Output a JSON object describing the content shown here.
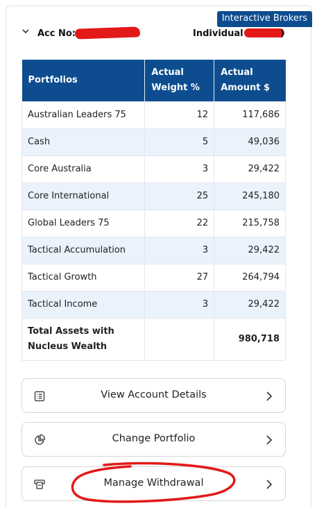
{
  "account": {
    "broker": "Interactive Brokers",
    "acc_label": "Acc No:",
    "type_label": "Individual (",
    "type_close": ")"
  },
  "table": {
    "headers": [
      "Portfolios",
      "Actual Weight %",
      "Actual Amount $"
    ],
    "rows": [
      {
        "portfolio": "Australian Leaders 75",
        "weight": "12",
        "amount": "117,686"
      },
      {
        "portfolio": "Cash",
        "weight": "5",
        "amount": "49,036"
      },
      {
        "portfolio": "Core Australia",
        "weight": "3",
        "amount": "29,422"
      },
      {
        "portfolio": "Core International",
        "weight": "25",
        "amount": "245,180"
      },
      {
        "portfolio": "Global Leaders 75",
        "weight": "22",
        "amount": "215,758"
      },
      {
        "portfolio": "Tactical Accumulation",
        "weight": "3",
        "amount": "29,422"
      },
      {
        "portfolio": "Tactical Growth",
        "weight": "27",
        "amount": "264,794"
      },
      {
        "portfolio": "Tactical Income",
        "weight": "3",
        "amount": "29,422"
      }
    ],
    "total": {
      "label": "Total Assets with Nucleus Wealth",
      "amount": "980,718"
    }
  },
  "actions": {
    "view_details": "View Account Details",
    "change_portfolio": "Change Portfolio",
    "manage_withdrawal": "Manage Withdrawal"
  },
  "colors": {
    "header_blue": "#0d4d8f",
    "row_alt": "#eaf2fb",
    "annotation_red": "#e31919"
  }
}
